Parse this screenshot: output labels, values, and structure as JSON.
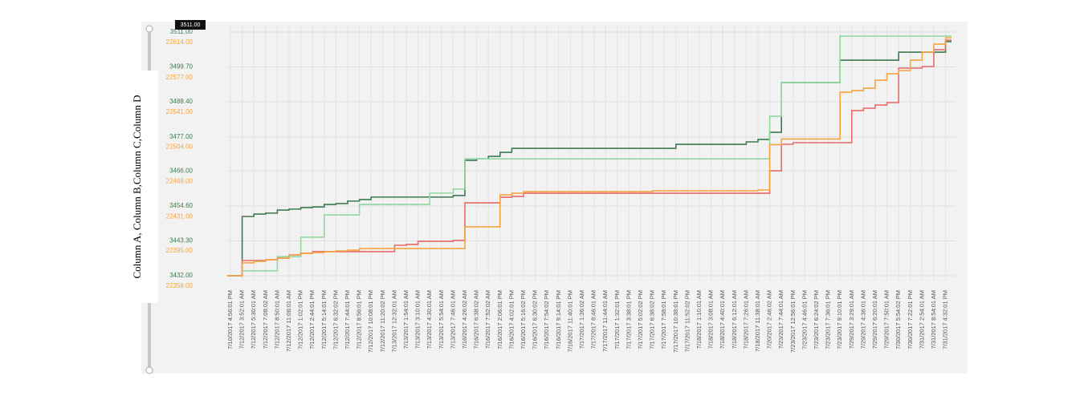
{
  "chart_data": {
    "type": "step-line",
    "y_axis_label": "Column A, Column B,Column C,Column D",
    "tooltip": "3511.00",
    "categories": [
      "7/10/2017 4:56:01 PM",
      "7/12/2017 3:52:01 AM",
      "7/12/2017 5:30:01 AM",
      "7/12/2017 7:08:02 AM",
      "7/12/2017 8:50:01 AM",
      "7/12/2017 11:06:01 AM",
      "7/12/2017 1:02:01 PM",
      "7/12/2017 2:44:01 PM",
      "7/12/2017 5:14:01 PM",
      "7/12/2017 6:32:02 PM",
      "7/12/2017 7:44:01 PM",
      "7/12/2017 8:56:01 PM",
      "7/12/2017 10:08:01 PM",
      "7/12/2017 11:20:02 PM",
      "7/13/2017 12:32:01 AM",
      "7/13/2017 1:54:01 AM",
      "7/13/2017 3:10:01 AM",
      "7/13/2017 4:30:01 AM",
      "7/13/2017 5:54:01 AM",
      "7/13/2017 7:46:01 AM",
      "7/16/2017 4:26:02 AM",
      "7/16/2017 6:38:02 AM",
      "7/16/2017 7:52:02 AM",
      "7/16/2017 2:06:01 PM",
      "7/16/2017 4:02:01 PM",
      "7/16/2017 5:16:02 PM",
      "7/16/2017 6:30:02 PM",
      "7/16/2017 7:54:02 PM",
      "7/16/2017 9:14:01 PM",
      "7/16/2017 11:40:01 PM",
      "7/17/2017 1:36:02 AM",
      "7/17/2017 8:46:01 AM",
      "7/17/2017 11:44:01 AM",
      "7/17/2017 1:32:01 PM",
      "7/17/2017 3:38:01 PM",
      "7/17/2017 5:02:02 PM",
      "7/17/2017 6:38:02 PM",
      "7/17/2017 7:58:01 PM",
      "7/17/2017 10:38:01 PM",
      "7/17/2017 11:52:02 PM",
      "7/18/2017 1:10:01 AM",
      "7/18/2017 3:08:01 AM",
      "7/18/2017 4:40:01 AM",
      "7/18/2017 6:12:01 AM",
      "7/18/2017 7:26:01 AM",
      "7/18/2017 11:38:01 AM",
      "7/20/2017 2:46:02 AM",
      "7/23/2017 7:44:01 AM",
      "7/23/2017 12:56:01 PM",
      "7/23/2017 4:46:01 PM",
      "7/23/2017 6:24:02 PM",
      "7/23/2017 7:36:01 PM",
      "7/23/2017 9:10:01 PM",
      "7/29/2017 3:29:01 AM",
      "7/29/2017 4:36:01 AM",
      "7/29/2017 6:20:01 AM",
      "7/29/2017 7:50:01 AM",
      "7/30/2017 5:54:02 PM",
      "7/30/2017 7:22:01 PM",
      "7/31/2017 2:54:01 AM",
      "7/31/2017 8:54:01 AM",
      "7/31/2017 4:32:01 PM"
    ],
    "series": [
      {
        "color": "#3d7a50",
        "values": [
          3432,
          3451.2,
          3452.0,
          3452.3,
          3453.3,
          3453.6,
          3454.1,
          3454.3,
          3455.1,
          3455.4,
          3456.2,
          3456.7,
          3457.5,
          3457.5,
          3457.5,
          3457.5,
          3457.5,
          3457.5,
          3457.5,
          3458.0,
          3469.4,
          3469.9,
          3470.7,
          3472.0,
          3473.3,
          3473.3,
          3473.3,
          3473.3,
          3473.3,
          3473.3,
          3473.3,
          3473.3,
          3473.3,
          3473.3,
          3473.3,
          3473.3,
          3473.3,
          3473.3,
          3474.6,
          3474.6,
          3474.6,
          3474.6,
          3474.6,
          3474.6,
          3475.4,
          3476.2,
          3478.5,
          3494.6,
          3494.6,
          3494.6,
          3494.6,
          3494.6,
          3501.9,
          3501.9,
          3501.9,
          3501.9,
          3501.9,
          3504.5,
          3504.5,
          3504.5,
          3504.5,
          3507.9
        ]
      },
      {
        "color": "#8fd8a0",
        "values": [
          3432,
          3433.6,
          3433.6,
          3433.6,
          3438.2,
          3438.2,
          3444.5,
          3444.5,
          3451.7,
          3451.7,
          3451.7,
          3455.1,
          3455.1,
          3455.1,
          3455.1,
          3455.1,
          3455.1,
          3458.8,
          3458.8,
          3460.1,
          3469.9,
          3469.9,
          3469.9,
          3469.9,
          3469.9,
          3469.9,
          3469.9,
          3469.9,
          3469.9,
          3469.9,
          3469.9,
          3469.9,
          3469.9,
          3469.9,
          3469.9,
          3469.9,
          3469.9,
          3469.9,
          3469.9,
          3469.9,
          3469.9,
          3469.9,
          3469.9,
          3469.9,
          3469.9,
          3469.9,
          3483.7,
          3494.6,
          3494.6,
          3494.6,
          3494.6,
          3494.6,
          3509.7,
          3509.7,
          3509.7,
          3509.7,
          3509.7,
          3509.7,
          3509.7,
          3509.7,
          3509.7,
          3509.7
        ]
      },
      {
        "color": "#e86a6a",
        "axis": "y2",
        "values": [
          22358,
          22374.0,
          22374.0,
          22374.8,
          22376.5,
          22379.9,
          22381.6,
          22383.3,
          22383.3,
          22383.3,
          22383.3,
          22383.3,
          22383.3,
          22383.3,
          22390.0,
          22390.9,
          22394.2,
          22394.2,
          22394.2,
          22395.1,
          22434.6,
          22434.6,
          22434.6,
          22440.5,
          22441.3,
          22444.7,
          22444.7,
          22444.7,
          22444.7,
          22444.7,
          22444.7,
          22444.7,
          22444.7,
          22444.7,
          22444.7,
          22444.7,
          22444.7,
          22444.7,
          22444.7,
          22444.7,
          22444.7,
          22444.7,
          22444.7,
          22444.7,
          22444.7,
          22444.7,
          22468.3,
          22496.1,
          22497.8,
          22497.8,
          22497.8,
          22497.8,
          22497.8,
          22531.5,
          22534.0,
          22537.3,
          22539.9,
          22576.1,
          22576.1,
          22577.8,
          22595.4,
          22605.5
        ]
      },
      {
        "color": "#f5a442",
        "axis": "y2",
        "values": [
          22358,
          22371.5,
          22373.1,
          22374.8,
          22376.5,
          22379.9,
          22381.6,
          22382.4,
          22383.3,
          22384.1,
          22384.9,
          22386.6,
          22386.6,
          22386.6,
          22386.6,
          22386.6,
          22386.6,
          22386.6,
          22386.6,
          22386.6,
          22409.4,
          22409.4,
          22409.4,
          22443.0,
          22444.7,
          22446.4,
          22446.4,
          22446.4,
          22446.4,
          22446.4,
          22446.4,
          22446.4,
          22446.4,
          22446.4,
          22446.4,
          22446.4,
          22447.2,
          22447.2,
          22447.2,
          22447.2,
          22447.2,
          22447.2,
          22447.2,
          22447.2,
          22447.2,
          22448.1,
          22495.7,
          22501.6,
          22501.6,
          22501.6,
          22501.6,
          22501.6,
          22550.8,
          22552.5,
          22555.0,
          22563.4,
          22570.2,
          22573.5,
          22584.5,
          22592.9,
          22601.3,
          22608.0
        ]
      }
    ],
    "ylim": [
      3432,
      3511
    ],
    "yticks": [
      {
        "value": 3432,
        "label": "3432.00"
      },
      {
        "value": 3443.3,
        "label": "3443.30"
      },
      {
        "value": 3454.6,
        "label": "3454.60"
      },
      {
        "value": 3466,
        "label": "3466.00"
      },
      {
        "value": 3477,
        "label": "3477.00"
      },
      {
        "value": 3488.4,
        "label": "3488.40"
      },
      {
        "value": 3499.7,
        "label": "3499.70"
      },
      {
        "value": 3511,
        "label": "3511.00"
      }
    ],
    "y2lim": [
      22358,
      22614
    ],
    "y2ticks": [
      {
        "value": 22358,
        "label": "22358.00"
      },
      {
        "value": 22395,
        "label": "22395.00"
      },
      {
        "value": 22431,
        "label": "22431.00"
      },
      {
        "value": 22468,
        "label": "22468.00"
      },
      {
        "value": 22504,
        "label": "22504.00"
      },
      {
        "value": 22541,
        "label": "22541.00"
      },
      {
        "value": 22577,
        "label": "22577.00"
      },
      {
        "value": 22614,
        "label": "22614.00"
      }
    ],
    "grid": true
  }
}
